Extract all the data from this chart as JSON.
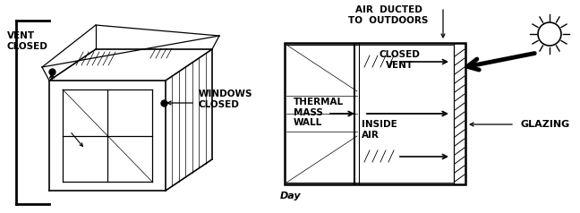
{
  "bg_color": "#ffffff",
  "line_color": "#000000",
  "left_diagram": {
    "label_vent": "VENT\nCLOSED",
    "label_windows": "WINDOWS\nCLOSED"
  },
  "right_diagram": {
    "label_air_ducted": "AIR  DUCTED\nTO  OUTDOORS",
    "label_closed_vent": "CLOSED\nVENT",
    "label_thermal": "THERMAL\nMASS\nWALL",
    "label_inside_air": "INSIDE\nAIR",
    "label_glazing": "GLAZING",
    "label_day": "Day"
  }
}
